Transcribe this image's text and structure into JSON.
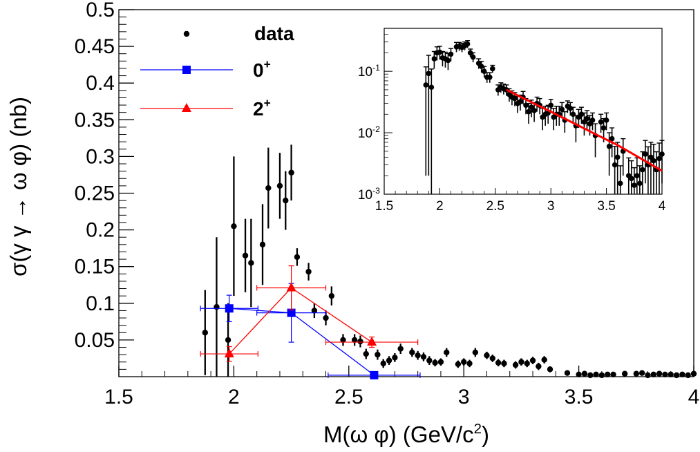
{
  "chart_data": [
    {
      "type": "scatter",
      "xlabel": "M(ω φ) (GeV/c²)",
      "xlabel_parts": {
        "base": "M(ω φ) (GeV/c",
        "sup": "2",
        "tail": ")"
      },
      "ylabel": "σ(γ γ → ω φ) (nb)",
      "xlim": [
        1.5,
        4.0
      ],
      "ylim": [
        0,
        0.5
      ],
      "xticks": [
        "1.5",
        "2",
        "2.5",
        "3",
        "3.5",
        "4"
      ],
      "yticks": [
        "0.05",
        "0.1",
        "0.15",
        "0.2",
        "0.25",
        "0.3",
        "0.35",
        "0.4",
        "0.45",
        "0.5"
      ],
      "grid": false,
      "legend_position": "top-left",
      "legend": [
        {
          "label": "data",
          "marker": "circle",
          "color": "#000000"
        },
        {
          "label": "0",
          "sup": "+",
          "marker": "square",
          "color": "#0000ff"
        },
        {
          "label": "2",
          "sup": "+",
          "marker": "triangle",
          "color": "#ff0000"
        }
      ],
      "series": [
        {
          "name": "data",
          "color": "#000000",
          "x": [
            1.875,
            1.925,
            1.975,
            2.0,
            2.05,
            2.075,
            2.125,
            2.15,
            2.2,
            2.225,
            2.25,
            2.275,
            2.325,
            2.35,
            2.4,
            2.425,
            2.475,
            2.525,
            2.55,
            2.575,
            2.625,
            2.65,
            2.675,
            2.7,
            2.725,
            2.775,
            2.8,
            2.825,
            2.85,
            2.875,
            2.9,
            2.925,
            2.975,
            3.0,
            3.025,
            3.05,
            3.1,
            3.125,
            3.15,
            3.175,
            3.225,
            3.25,
            3.275,
            3.3,
            3.325,
            3.35,
            3.375,
            3.45,
            3.5,
            3.525,
            3.55,
            3.575,
            3.6,
            3.625,
            3.65,
            3.7,
            3.75,
            3.775,
            3.8,
            3.825,
            3.85,
            3.875,
            3.9,
            3.925,
            3.95,
            3.975,
            4.0
          ],
          "y": [
            0.06,
            0.095,
            0.05,
            0.205,
            0.165,
            0.155,
            0.18,
            0.257,
            0.26,
            0.24,
            0.278,
            0.163,
            0.143,
            0.09,
            0.08,
            0.11,
            0.05,
            0.05,
            0.048,
            0.031,
            0.03,
            0.018,
            0.022,
            0.026,
            0.038,
            0.033,
            0.029,
            0.027,
            0.022,
            0.019,
            0.02,
            0.033,
            0.017,
            0.02,
            0.018,
            0.033,
            0.029,
            0.025,
            0.019,
            0.018,
            0.016,
            0.02,
            0.018,
            0.022,
            0.014,
            0.023,
            0.01,
            0.005,
            0.003,
            0.004,
            0.002,
            0.003,
            0.002,
            0.003,
            0.003,
            0.004,
            0.004,
            0.005,
            0.002,
            0.003,
            0.004,
            0.003,
            0.003,
            0.002,
            0.003,
            0.002,
            0.004
          ],
          "err": [
            0.058,
            0.095,
            0.05,
            0.095,
            0.05,
            0.06,
            0.055,
            0.055,
            0.045,
            0.04,
            0.038,
            0.012,
            0.012,
            0.01,
            0.01,
            0.013,
            0.008,
            0.008,
            0.008,
            0.007,
            0.007,
            0.006,
            0.006,
            0.006,
            0.007,
            0.006,
            0.006,
            0.006,
            0.006,
            0.005,
            0.005,
            0.006,
            0.005,
            0.005,
            0.005,
            0.006,
            0.005,
            0.005,
            0.005,
            0.005,
            0.005,
            0.005,
            0.005,
            0.005,
            0.005,
            0.005,
            0.004,
            0.003,
            0.003,
            0.003,
            0.002,
            0.003,
            0.002,
            0.003,
            0.003,
            0.003,
            0.003,
            0.003,
            0.002,
            0.003,
            0.003,
            0.003,
            0.003,
            0.002,
            0.003,
            0.002,
            0.003
          ]
        },
        {
          "name": "0+",
          "color": "#0000ff",
          "marker": "square",
          "x": [
            1.98,
            2.25,
            2.61
          ],
          "y": [
            0.093,
            0.087,
            0.002
          ],
          "xerr": [
            0.125,
            0.15,
            0.2
          ],
          "yerr": [
            0.018,
            0.04,
            0.003
          ]
        },
        {
          "name": "2+",
          "color": "#ff0000",
          "marker": "triangle",
          "x": [
            1.98,
            2.25,
            2.6
          ],
          "y": [
            0.031,
            0.121,
            0.047
          ],
          "xerr": [
            0.125,
            0.15,
            0.2
          ],
          "yerr": [
            0.01,
            0.03,
            0.007
          ]
        }
      ]
    },
    {
      "type": "scatter",
      "role": "inset",
      "xlim": [
        1.5,
        4.0
      ],
      "ylim": [
        0.001,
        0.5
      ],
      "yscale": "log",
      "xticks": [
        "1.5",
        "2",
        "2.5",
        "3",
        "3.5",
        "4"
      ],
      "yticks": [
        {
          "base": "10",
          "exp": "-3",
          "value": 0.001
        },
        {
          "base": "10",
          "exp": "-2",
          "value": 0.01
        },
        {
          "base": "10",
          "exp": "-1",
          "value": 0.1
        }
      ],
      "series": [
        {
          "name": "data",
          "color": "#000000",
          "x": [
            1.875,
            1.9,
            1.925,
            1.95,
            1.975,
            2.0,
            2.025,
            2.05,
            2.075,
            2.1,
            2.15,
            2.175,
            2.2,
            2.225,
            2.25,
            2.275,
            2.3,
            2.35,
            2.375,
            2.4,
            2.425,
            2.45,
            2.475,
            2.525,
            2.55,
            2.575,
            2.6,
            2.625,
            2.65,
            2.675,
            2.7,
            2.725,
            2.75,
            2.775,
            2.8,
            2.825,
            2.85,
            2.875,
            2.9,
            2.925,
            2.95,
            2.975,
            3.0,
            3.025,
            3.05,
            3.075,
            3.1,
            3.125,
            3.15,
            3.175,
            3.2,
            3.225,
            3.25,
            3.275,
            3.3,
            3.325,
            3.35,
            3.375,
            3.4,
            3.45,
            3.475,
            3.5,
            3.525,
            3.55,
            3.575,
            3.6,
            3.625,
            3.65,
            3.7,
            3.725,
            3.75,
            3.775,
            3.8,
            3.825,
            3.85,
            3.875,
            3.9,
            3.925,
            3.95,
            3.975,
            4.0
          ],
          "y": [
            0.06,
            0.092,
            0.055,
            0.16,
            0.2,
            0.205,
            0.165,
            0.16,
            0.15,
            0.19,
            0.25,
            0.255,
            0.245,
            0.26,
            0.278,
            0.2,
            0.17,
            0.135,
            0.12,
            0.1,
            0.08,
            0.08,
            0.11,
            0.05,
            0.055,
            0.052,
            0.05,
            0.042,
            0.038,
            0.036,
            0.03,
            0.032,
            0.038,
            0.028,
            0.022,
            0.026,
            0.023,
            0.03,
            0.028,
            0.018,
            0.02,
            0.021,
            0.028,
            0.018,
            0.02,
            0.02,
            0.024,
            0.016,
            0.027,
            0.025,
            0.02,
            0.013,
            0.018,
            0.02,
            0.015,
            0.017,
            0.014,
            0.016,
            0.009,
            0.015,
            0.012,
            0.016,
            0.006,
            0.008,
            0.003,
            0.004,
            0.0015,
            0.005,
            0.002,
            0.0018,
            0.0014,
            0.002,
            0.0015,
            0.0025,
            0.0045,
            0.003,
            0.004,
            0.0035,
            0.0025,
            0.0038,
            0.0045
          ],
          "err": [
            0.058,
            0.09,
            0.054,
            0.05,
            0.05,
            0.05,
            0.045,
            0.045,
            0.045,
            0.045,
            0.045,
            0.04,
            0.04,
            0.04,
            0.038,
            0.03,
            0.03,
            0.025,
            0.025,
            0.02,
            0.015,
            0.015,
            0.015,
            0.01,
            0.01,
            0.01,
            0.01,
            0.01,
            0.01,
            0.009,
            0.009,
            0.009,
            0.009,
            0.008,
            0.008,
            0.008,
            0.008,
            0.008,
            0.008,
            0.007,
            0.007,
            0.007,
            0.007,
            0.007,
            0.007,
            0.007,
            0.007,
            0.006,
            0.006,
            0.006,
            0.006,
            0.006,
            0.006,
            0.006,
            0.006,
            0.006,
            0.005,
            0.005,
            0.005,
            0.005,
            0.005,
            0.005,
            0.004,
            0.004,
            0.003,
            0.003,
            0.0014,
            0.003,
            0.0019,
            0.0017,
            0.0013,
            0.0019,
            0.0014,
            0.0024,
            0.003,
            0.0029,
            0.003,
            0.003,
            0.0024,
            0.003,
            0.003
          ]
        },
        {
          "name": "fit",
          "type": "line",
          "color": "#ff0000",
          "x": [
            2.6,
            2.8,
            3.0,
            3.2,
            3.4,
            3.6,
            3.8,
            4.0
          ],
          "y": [
            0.05,
            0.033,
            0.022,
            0.0145,
            0.0095,
            0.0063,
            0.0039,
            0.0024
          ]
        }
      ]
    }
  ]
}
